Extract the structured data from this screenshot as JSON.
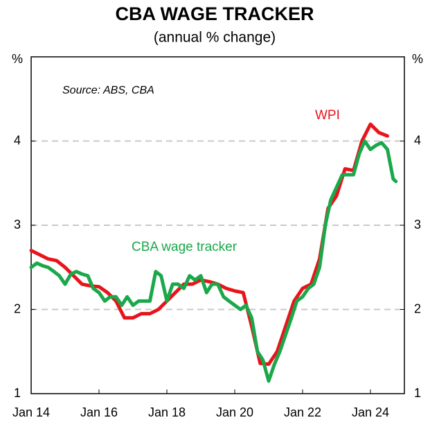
{
  "chart_data": {
    "type": "line",
    "title": "CBA WAGE TRACKER",
    "subtitle": "(annual % change)",
    "y_label": "%",
    "y2_label": "%",
    "annotation": "Source: ABS, CBA",
    "xlim": [
      2014,
      2025
    ],
    "xticks": [
      {
        "value": 2014,
        "label": "Jan 14"
      },
      {
        "value": 2016,
        "label": "Jan 16"
      },
      {
        "value": 2018,
        "label": "Jan 18"
      },
      {
        "value": 2020,
        "label": "Jan 20"
      },
      {
        "value": 2022,
        "label": "Jan 22"
      },
      {
        "value": 2024,
        "label": "Jan 24"
      }
    ],
    "ylim": [
      1,
      5
    ],
    "yticks": [
      1,
      2,
      3,
      4
    ],
    "y2lim": [
      1,
      5
    ],
    "y2ticks": [
      1,
      2,
      3,
      4
    ],
    "grid": true,
    "series": [
      {
        "name": "WPI",
        "color": "#e8141c",
        "x": [
          2014,
          2014.25,
          2014.5,
          2014.75,
          2015,
          2015.25,
          2015.5,
          2015.75,
          2016,
          2016.25,
          2016.5,
          2016.75,
          2017,
          2017.25,
          2017.5,
          2017.75,
          2018,
          2018.25,
          2018.5,
          2018.75,
          2019,
          2019.25,
          2019.5,
          2019.75,
          2020,
          2020.25,
          2020.5,
          2020.75,
          2021,
          2021.25,
          2021.5,
          2021.75,
          2022,
          2022.25,
          2022.5,
          2022.75,
          2023,
          2023.25,
          2023.5,
          2023.75,
          2024,
          2024.25,
          2024.5
        ],
        "values": [
          2.7,
          2.65,
          2.6,
          2.58,
          2.5,
          2.4,
          2.3,
          2.28,
          2.27,
          2.2,
          2.1,
          1.9,
          1.9,
          1.95,
          1.95,
          2.0,
          2.1,
          2.2,
          2.3,
          2.3,
          2.35,
          2.33,
          2.3,
          2.25,
          2.22,
          2.2,
          1.8,
          1.36,
          1.35,
          1.5,
          1.8,
          2.1,
          2.25,
          2.3,
          2.6,
          3.2,
          3.35,
          3.67,
          3.65,
          4.0,
          4.2,
          4.1,
          4.06
        ]
      },
      {
        "name": "CBA wage tracker",
        "color": "#1aa84a",
        "x": [
          2014,
          2014.17,
          2014.33,
          2014.5,
          2014.67,
          2014.83,
          2015,
          2015.17,
          2015.33,
          2015.5,
          2015.67,
          2015.83,
          2016,
          2016.17,
          2016.33,
          2016.5,
          2016.67,
          2016.83,
          2017,
          2017.17,
          2017.33,
          2017.5,
          2017.67,
          2017.83,
          2018,
          2018.17,
          2018.33,
          2018.5,
          2018.67,
          2018.83,
          2019,
          2019.17,
          2019.33,
          2019.5,
          2019.67,
          2019.83,
          2020,
          2020.17,
          2020.33,
          2020.5,
          2020.67,
          2020.83,
          2021,
          2021.17,
          2021.33,
          2021.5,
          2021.67,
          2021.83,
          2022,
          2022.17,
          2022.33,
          2022.5,
          2022.67,
          2022.83,
          2023,
          2023.17,
          2023.33,
          2023.5,
          2023.67,
          2023.83,
          2024,
          2024.17,
          2024.33,
          2024.5,
          2024.67,
          2024.75
        ],
        "values": [
          2.5,
          2.55,
          2.52,
          2.5,
          2.45,
          2.4,
          2.3,
          2.42,
          2.45,
          2.42,
          2.4,
          2.25,
          2.2,
          2.1,
          2.15,
          2.15,
          2.05,
          2.15,
          2.05,
          2.1,
          2.1,
          2.1,
          2.45,
          2.4,
          2.1,
          2.3,
          2.3,
          2.25,
          2.4,
          2.35,
          2.4,
          2.2,
          2.3,
          2.3,
          2.15,
          2.1,
          2.05,
          2.0,
          2.05,
          1.9,
          1.5,
          1.4,
          1.15,
          1.35,
          1.5,
          1.7,
          1.9,
          2.1,
          2.15,
          2.25,
          2.3,
          2.5,
          3.0,
          3.3,
          3.45,
          3.6,
          3.6,
          3.6,
          3.85,
          4.0,
          3.9,
          3.95,
          3.98,
          3.9,
          3.55,
          3.52
        ]
      }
    ]
  }
}
